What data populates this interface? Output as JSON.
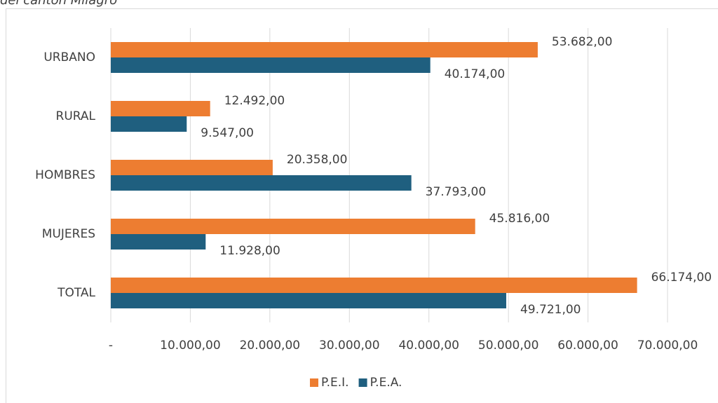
{
  "chart_data": {
    "type": "barh",
    "title": "del cantón Milagro",
    "categories": [
      "URBANO",
      "RURAL",
      "HOMBRES",
      "MUJERES",
      "TOTAL"
    ],
    "series": [
      {
        "name": "P.E.I.",
        "color": "#ED7D31",
        "values": [
          53682,
          12492,
          20358,
          45816,
          66174
        ],
        "value_labels": [
          "53.682,00",
          "12.492,00",
          "20.358,00",
          "45.816,00",
          "66.174,00"
        ]
      },
      {
        "name": "P.E.A.",
        "color": "#1F5F7F",
        "values": [
          40174,
          9547,
          37793,
          11928,
          49721
        ],
        "value_labels": [
          "40.174,00",
          "9.547,00",
          "37.793,00",
          "11.928,00",
          "49.721,00"
        ]
      }
    ],
    "xlim": [
      0,
      70000
    ],
    "xticks": [
      {
        "value": 0,
        "label": "-"
      },
      {
        "value": 10000,
        "label": "10.000,00"
      },
      {
        "value": 20000,
        "label": "20.000,00"
      },
      {
        "value": 30000,
        "label": "30.000,00"
      },
      {
        "value": 40000,
        "label": "40.000,00"
      },
      {
        "value": 50000,
        "label": "50.000,00"
      },
      {
        "value": 60000,
        "label": "60.000,00"
      },
      {
        "value": 70000,
        "label": "70.000,00"
      }
    ],
    "grid": true,
    "legend": "bottom"
  }
}
